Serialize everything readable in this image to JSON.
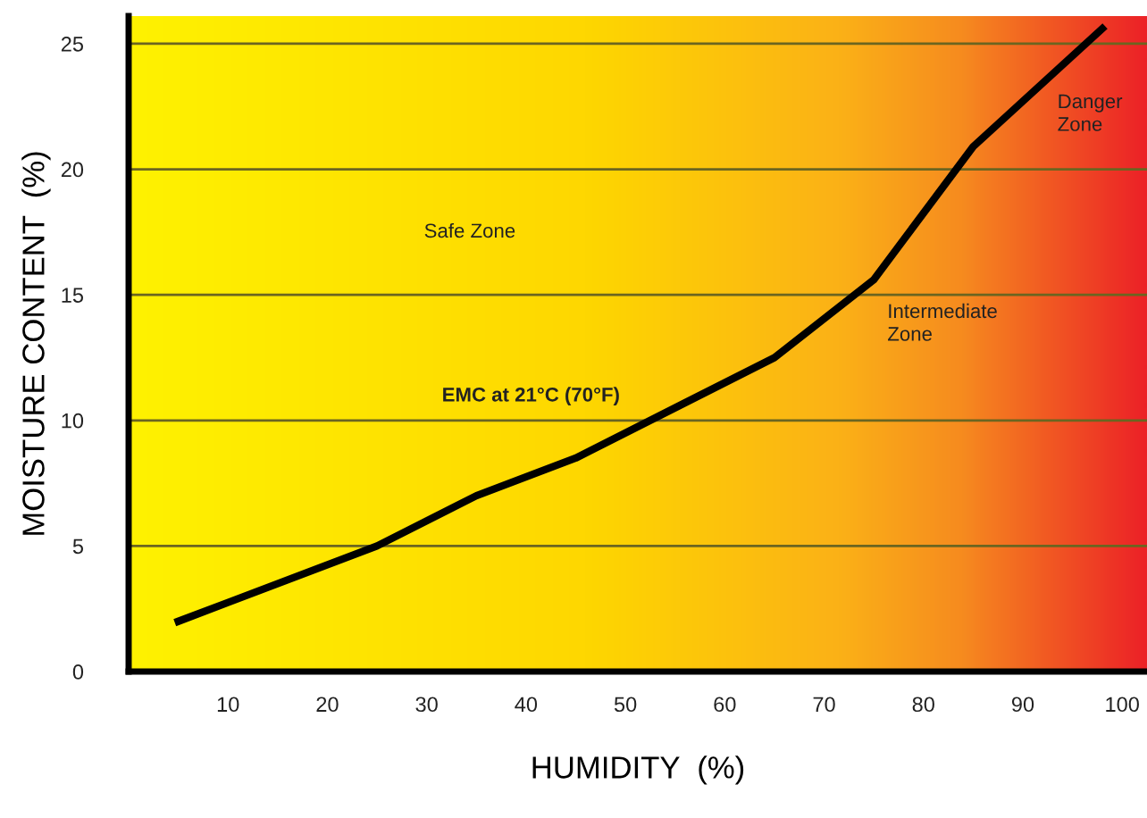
{
  "chart_data": {
    "type": "line",
    "xlabel": "HUMIDITY  (%)",
    "ylabel": "MOISTURE CONTENT  (%)",
    "series": [
      {
        "color": "#000000",
        "x": [
          5,
          25,
          35,
          45,
          65,
          75,
          85,
          98
        ],
        "values": [
          2.0,
          5.0,
          7.0,
          8.5,
          12.5,
          15.6,
          20.9,
          25.6
        ]
      }
    ],
    "xlim": [
      0,
      102.5
    ],
    "xticks": [
      10,
      20,
      30,
      40,
      50,
      60,
      70,
      80,
      90,
      100
    ],
    "ylim": [
      0,
      26.1
    ],
    "yticks": [
      0,
      5,
      10,
      15,
      20,
      25
    ],
    "grid": "y",
    "marker": "none",
    "line_style": "solid",
    "annotations": [
      "Safe Zone",
      "EMC at 21°C (70°F)",
      "Intermediate\nZone",
      "Danger\nZone"
    ]
  }
}
